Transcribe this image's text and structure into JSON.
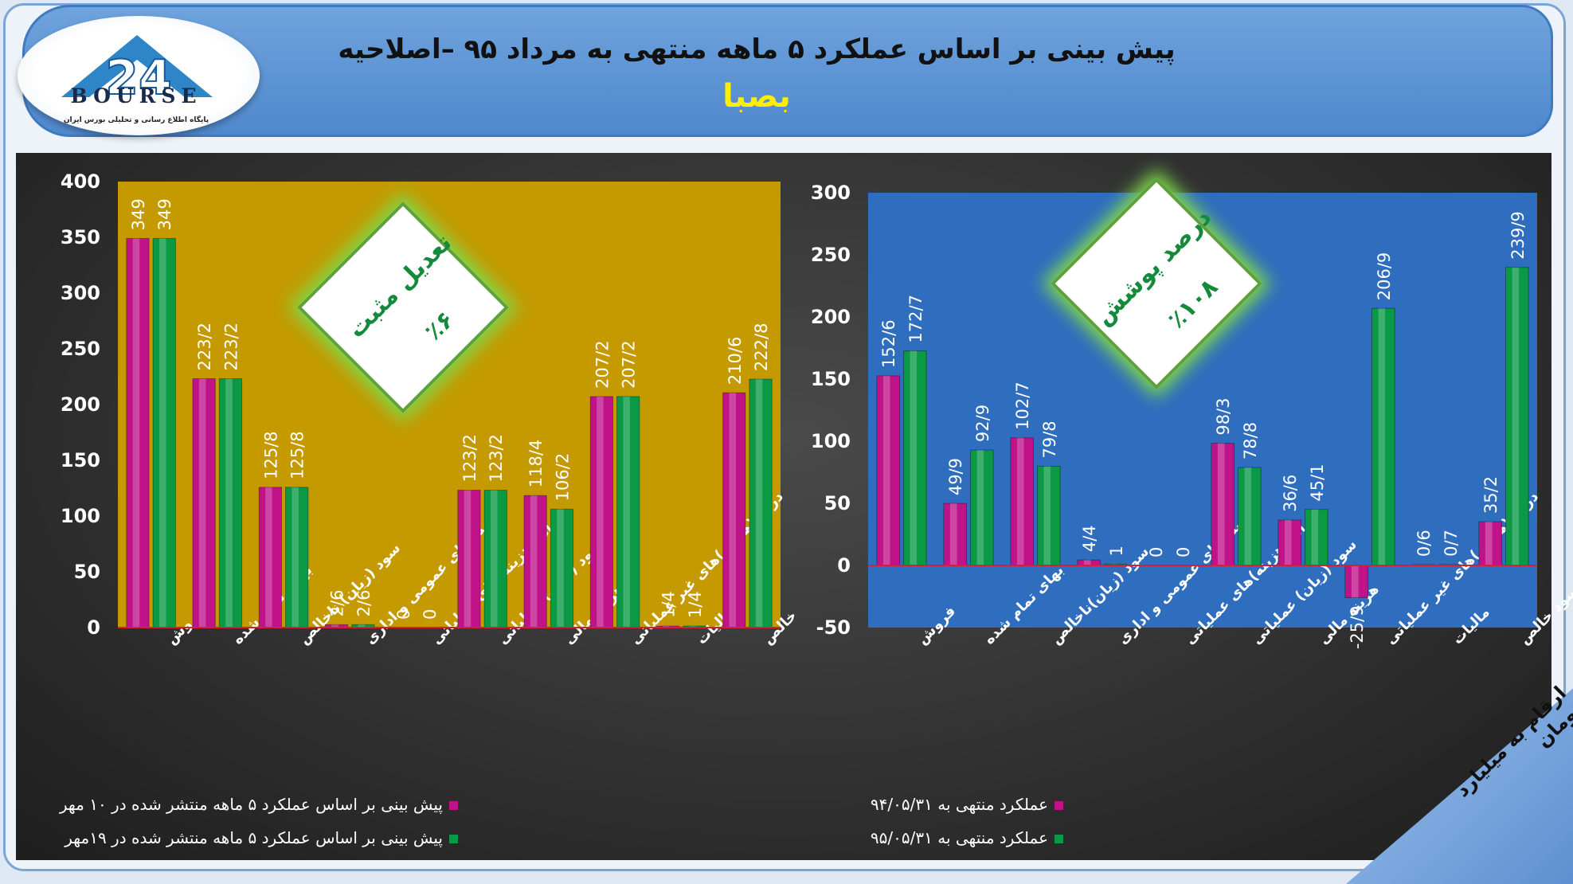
{
  "header": {
    "title": "پیش بینی بر اساس عملکرد ۵ ماهه منتهی به مرداد ۹۵ –اصلاحیه",
    "subtitle": "بصبا",
    "logo_word": "BOURSE",
    "logo_tagline": "پایگاه اطلاع رسانی و تحلیلی بورس ایران",
    "logo_number": "24"
  },
  "colors": {
    "magenta": "#c0138a",
    "green": "#0a9945",
    "left_bg": "#c49a00",
    "right_bg": "#2f6dbf"
  },
  "charts": {
    "left": {
      "note_line1": "تعدیل مثبت",
      "note_line2": "٪۶",
      "legend": [
        "پیش بینی بر اساس عملکرد ۵ ماهه منتشر شده در ۱۰ مهر",
        "پیش بینی بر اساس عملکرد ۵ ماهه منتشر شده در ۱۹مهر"
      ]
    },
    "right": {
      "note_line1": "درصد پوشش",
      "note_line2": "٪۱۰۸",
      "legend": [
        "عملکرد منتهی به ۹۴/۰۵/۳۱",
        "عملکرد منتهی به ۹۵/۰۵/۳۱"
      ],
      "corner_note": "ارقام به میلیارد تومان"
    }
  },
  "chart_data": [
    {
      "type": "bar",
      "categories": [
        "فروش",
        "بهای تمام شده",
        "سود (زیان) ناخالص",
        "هزینه های عمومی و اداری",
        "درآمد(هزینه)های عملیاتی",
        "سود (زیان) عملیاتی",
        "هزینه مالی",
        "درآمد(هزینه)های غیر عملیاتی",
        "مالیات",
        "سود خالص"
      ],
      "series": [
        {
          "name": "پیش بینی بر اساس عملکرد ۵ ماهه منتشر شده در ۱۰ مهر",
          "values": [
            349,
            223.2,
            125.8,
            2.6,
            0,
            123.2,
            118.4,
            207.2,
            1.4,
            210.6
          ],
          "labels": [
            "349",
            "223/2",
            "125/8",
            "2/6",
            "0",
            "123/2",
            "118/4",
            "207/2",
            "1/4",
            "210/6"
          ]
        },
        {
          "name": "پیش بینی بر اساس عملکرد ۵ ماهه منتشر شده در ۱۹مهر",
          "values": [
            349,
            223.2,
            125.8,
            2.6,
            0,
            123.2,
            106.2,
            207.2,
            1.4,
            222.8
          ],
          "labels": [
            "349",
            "223/2",
            "125/8",
            "2/6",
            "0",
            "123/2",
            "106/2",
            "207/2",
            "1/4",
            "222/8"
          ]
        }
      ],
      "yticks": [
        "400",
        "350",
        "300",
        "250",
        "200",
        "150",
        "100",
        "50",
        "0"
      ],
      "ylim": [
        0,
        400
      ]
    },
    {
      "type": "bar",
      "categories": [
        "فروش",
        "بهای تمام شده",
        "سود (زیان)ناخالص",
        "هزینه های عمومی و اداری",
        "درآمد(هزینه)های عملیاتی",
        "سود (زیان) عملیاتی",
        "هزینه مالی",
        "درآمد(هزینه)های غیر عملیاتی",
        "مالیات",
        "سود خالص"
      ],
      "series": [
        {
          "name": "عملکرد منتهی به ۹۴/۰۵/۳۱",
          "values": [
            152.6,
            49.9,
            102.7,
            4.4,
            0,
            98.3,
            36.6,
            -25.9,
            0.6,
            35.2
          ],
          "labels": [
            "152/6",
            "49/9",
            "102/7",
            "4/4",
            "0",
            "98/3",
            "36/6",
            "-25/9",
            "0/6",
            "35/2"
          ]
        },
        {
          "name": "عملکرد منتهی به ۹۵/۰۵/۳۱",
          "values": [
            172.7,
            92.9,
            79.8,
            1,
            0,
            78.8,
            45.1,
            206.9,
            0.7,
            239.9
          ],
          "labels": [
            "172/7",
            "92/9",
            "79/8",
            "1",
            "0",
            "78/8",
            "45/1",
            "206/9",
            "0/7",
            "239/9"
          ]
        }
      ],
      "yticks": [
        "300",
        "250",
        "200",
        "150",
        "100",
        "50",
        "0",
        "-50"
      ],
      "ylim": [
        -50,
        300
      ]
    }
  ]
}
